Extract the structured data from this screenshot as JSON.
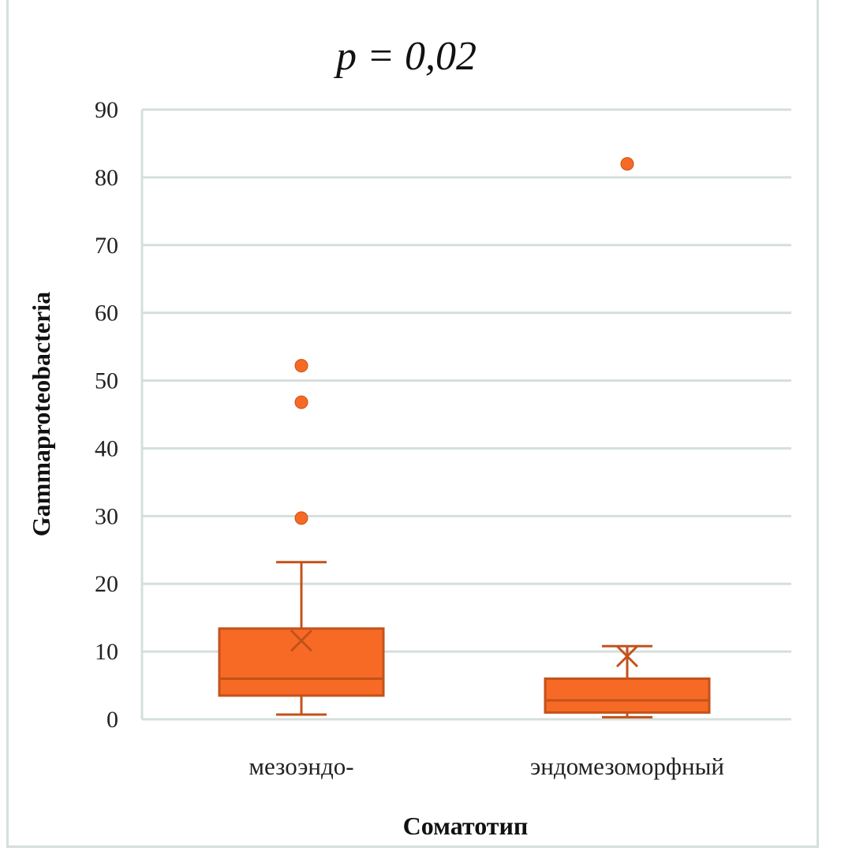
{
  "chart_data": {
    "type": "boxplot",
    "title": "p = 0,02",
    "xlabel": "Соматотип",
    "ylabel": "Gammaproteobacteria",
    "ylim": [
      0,
      90
    ],
    "yticks": [
      0,
      10,
      20,
      30,
      40,
      50,
      60,
      70,
      80,
      90
    ],
    "ytick_labels": [
      "0",
      "10",
      "20",
      "30",
      "40",
      "50",
      "60",
      "70",
      "80",
      "90"
    ],
    "grid": true,
    "categories": [
      "мезоэндо-",
      "эндомезоморфный"
    ],
    "series": [
      {
        "name": "мезоэндо-",
        "whisker_low": 0.7,
        "q1": 3.5,
        "median": 6.0,
        "q3": 13.4,
        "whisker_high": 23.2,
        "mean": 11.6,
        "outliers": [
          29.7,
          46.8,
          52.2
        ]
      },
      {
        "name": "эндомезоморфный",
        "whisker_low": 0.3,
        "q1": 1.0,
        "median": 2.8,
        "q3": 6.0,
        "whisker_high": 10.8,
        "mean": 9.3,
        "outliers": [
          82.0
        ]
      }
    ],
    "colors": {
      "fill": "#f76a25",
      "stroke": "#c3521a",
      "grid": "#d5dfdc",
      "frame": "#d5dfdc"
    }
  }
}
